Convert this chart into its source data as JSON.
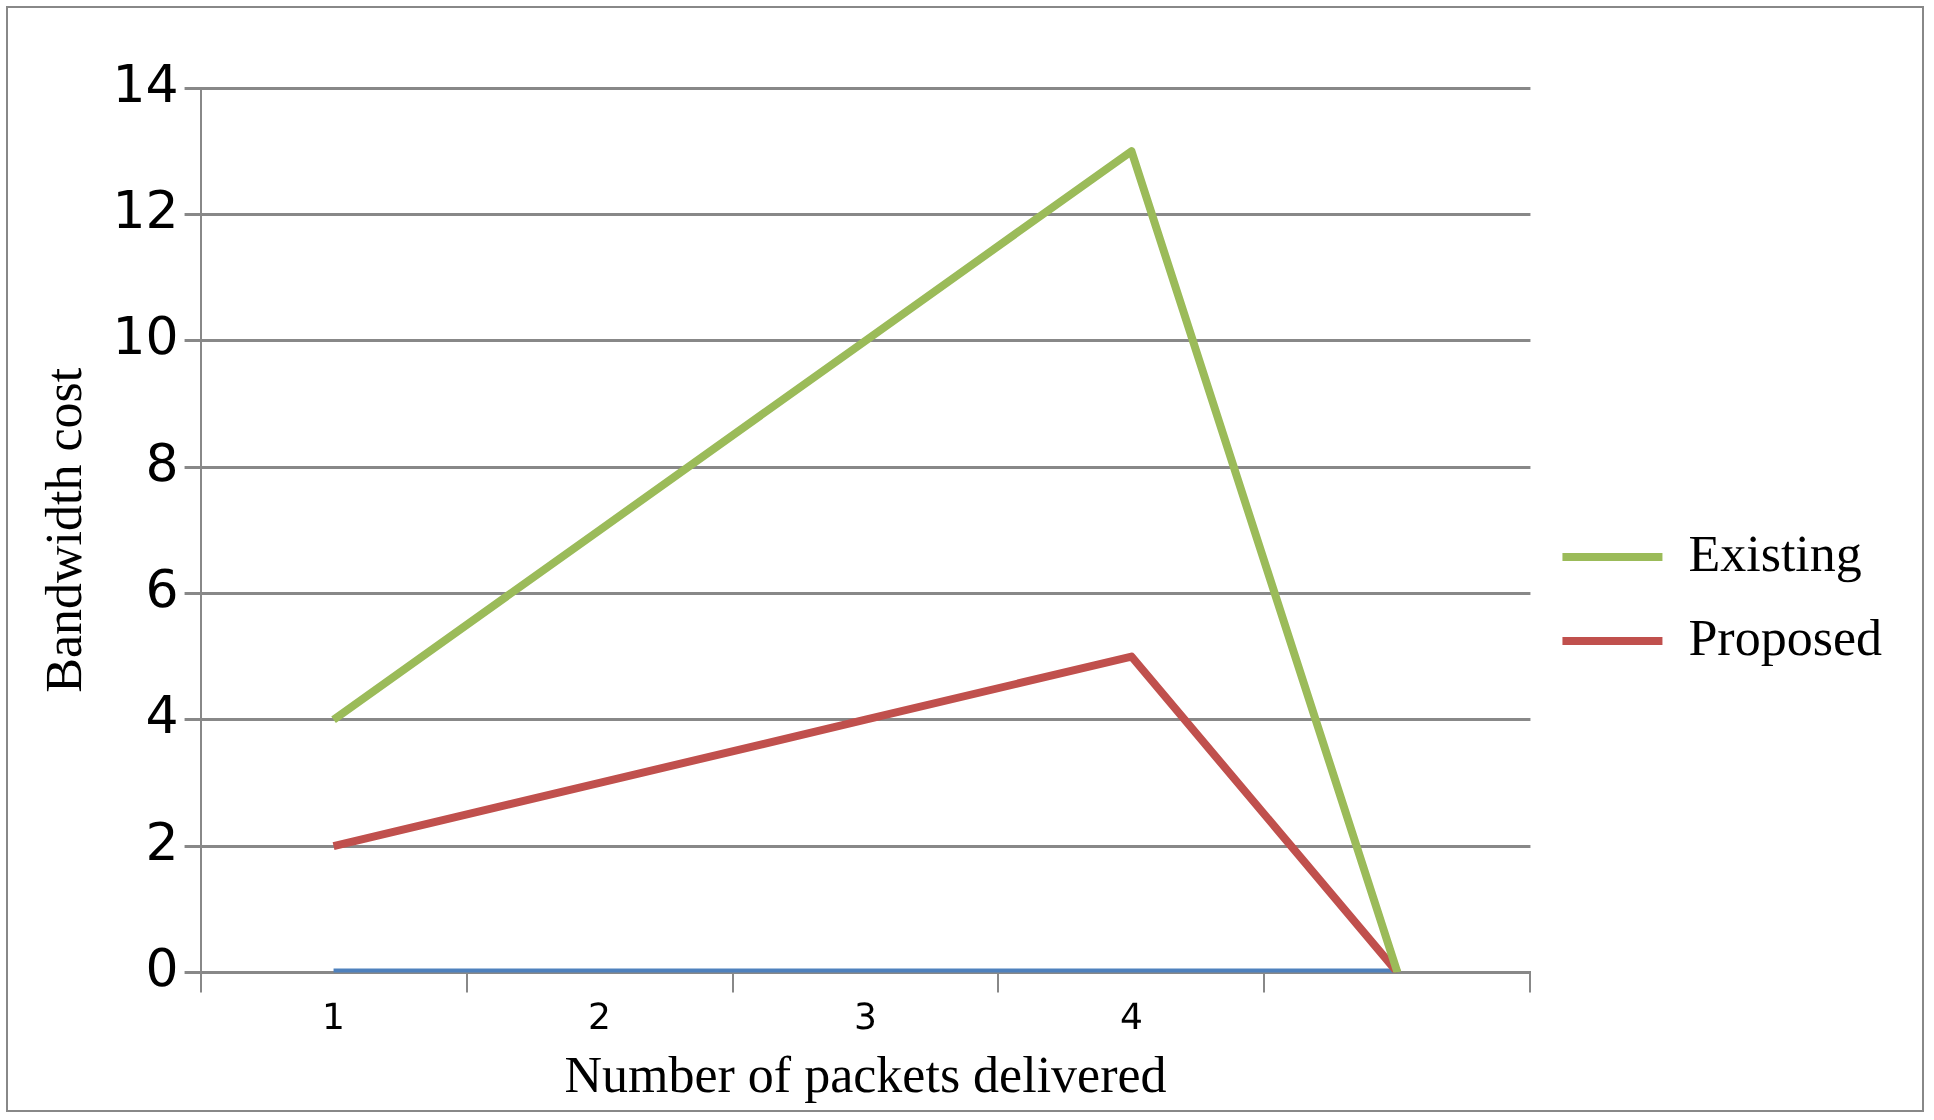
{
  "chart_data": {
    "type": "line",
    "xlabel": "Number of packets delivered",
    "ylabel": "Bandwidth cost",
    "categories": [
      "1",
      "2",
      "3",
      "4",
      null
    ],
    "series": [
      {
        "name": "Existing",
        "color": "#9bbb59",
        "values": [
          4,
          7,
          10,
          13,
          0
        ]
      },
      {
        "name": "Proposed",
        "color": "#c0504d",
        "values": [
          2,
          3,
          4,
          5,
          0
        ]
      },
      {
        "color": "#4f81bd",
        "values": [
          0,
          0,
          0,
          0,
          0
        ]
      }
    ],
    "ylim": [
      0,
      14
    ],
    "yticks": [
      0,
      2,
      4,
      6,
      8,
      10,
      12,
      14
    ],
    "grid": "y",
    "legend": "right",
    "marker": "none",
    "line_style": "solid"
  }
}
